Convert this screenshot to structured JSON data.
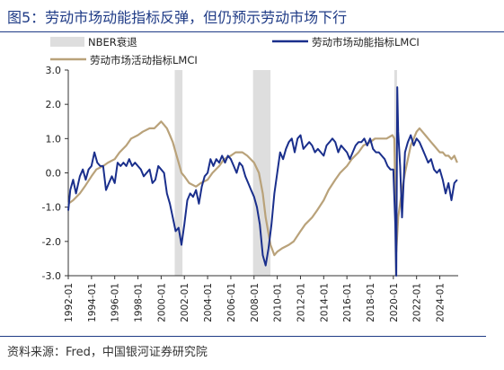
{
  "header": {
    "title": "图5：劳动市场动能指标反弹，但仍预示劳动市场下行"
  },
  "footer": {
    "source": "资料来源：Fred，中国银河证券研究院"
  },
  "chart_data": {
    "type": "line",
    "ylim": [
      -3.0,
      3.0
    ],
    "yticks": [
      "3.0",
      "2.0",
      "1.0",
      "0.0",
      "-1.0",
      "-2.0",
      "-3.0"
    ],
    "ytick_values": [
      3,
      2,
      1,
      0,
      -1,
      -2,
      -3
    ],
    "xlim": [
      "1992-01",
      "2025-08"
    ],
    "xticks": [
      "1992-01",
      "1994-01",
      "1996-01",
      "1998-01",
      "2000-01",
      "2002-01",
      "2004-01",
      "2006-01",
      "2008-01",
      "2010-01",
      "2012-01",
      "2014-01",
      "2016-01",
      "2018-01",
      "2020-01",
      "2022-01",
      "2024-01"
    ],
    "legend": {
      "recession": "NBER衰退",
      "momentum": "劳动市场动能指标LMCI",
      "activity": "劳动市场活动指标LMCI"
    },
    "colors": {
      "momentum": "#1a2f8c",
      "activity": "#b9a27a",
      "recession": "#dedede"
    },
    "recessions": [
      [
        "2001-03",
        "2001-11"
      ],
      [
        "2007-12",
        "2009-06"
      ],
      [
        "2020-02",
        "2020-04"
      ]
    ],
    "series": [
      {
        "name": "劳动市场动能指标LMCI",
        "points": [
          [
            "1992-01",
            -1.1
          ],
          [
            "1992-03",
            -0.5
          ],
          [
            "1992-06",
            -0.2
          ],
          [
            "1992-09",
            -0.6
          ],
          [
            "1993-01",
            -0.1
          ],
          [
            "1993-04",
            0.1
          ],
          [
            "1993-07",
            -0.2
          ],
          [
            "1993-10",
            0.1
          ],
          [
            "1994-01",
            0.2
          ],
          [
            "1994-04",
            0.6
          ],
          [
            "1994-07",
            0.3
          ],
          [
            "1994-10",
            0.2
          ],
          [
            "1995-01",
            0.2
          ],
          [
            "1995-04",
            -0.5
          ],
          [
            "1995-07",
            -0.3
          ],
          [
            "1995-10",
            -0.1
          ],
          [
            "1996-01",
            -0.3
          ],
          [
            "1996-04",
            0.3
          ],
          [
            "1996-07",
            0.2
          ],
          [
            "1996-10",
            0.3
          ],
          [
            "1997-01",
            0.2
          ],
          [
            "1997-04",
            0.4
          ],
          [
            "1997-07",
            0.2
          ],
          [
            "1997-10",
            0.3
          ],
          [
            "1998-01",
            0.2
          ],
          [
            "1998-04",
            0.1
          ],
          [
            "1998-07",
            -0.1
          ],
          [
            "1998-10",
            0.0
          ],
          [
            "1999-01",
            0.1
          ],
          [
            "1999-04",
            -0.3
          ],
          [
            "1999-07",
            -0.2
          ],
          [
            "1999-10",
            0.2
          ],
          [
            "2000-01",
            0.1
          ],
          [
            "2000-04",
            0.0
          ],
          [
            "2000-07",
            -0.6
          ],
          [
            "2000-10",
            -0.9
          ],
          [
            "2001-01",
            -1.3
          ],
          [
            "2001-04",
            -1.7
          ],
          [
            "2001-07",
            -1.6
          ],
          [
            "2001-10",
            -2.1
          ],
          [
            "2002-01",
            -1.5
          ],
          [
            "2002-04",
            -0.8
          ],
          [
            "2002-07",
            -0.6
          ],
          [
            "2002-10",
            -0.7
          ],
          [
            "2003-01",
            -0.5
          ],
          [
            "2003-04",
            -0.9
          ],
          [
            "2003-07",
            -0.4
          ],
          [
            "2003-10",
            -0.1
          ],
          [
            "2004-01",
            0.0
          ],
          [
            "2004-04",
            0.4
          ],
          [
            "2004-07",
            0.2
          ],
          [
            "2004-10",
            0.4
          ],
          [
            "2005-01",
            0.3
          ],
          [
            "2005-04",
            0.5
          ],
          [
            "2005-07",
            0.3
          ],
          [
            "2005-10",
            0.5
          ],
          [
            "2006-01",
            0.4
          ],
          [
            "2006-04",
            0.2
          ],
          [
            "2006-07",
            0.0
          ],
          [
            "2006-10",
            0.3
          ],
          [
            "2007-01",
            0.2
          ],
          [
            "2007-04",
            -0.1
          ],
          [
            "2007-07",
            -0.3
          ],
          [
            "2007-10",
            -0.5
          ],
          [
            "2008-01",
            -0.7
          ],
          [
            "2008-04",
            -1.0
          ],
          [
            "2008-07",
            -1.5
          ],
          [
            "2008-10",
            -2.4
          ],
          [
            "2009-01",
            -2.7
          ],
          [
            "2009-04",
            -2.2
          ],
          [
            "2009-07",
            -1.5
          ],
          [
            "2009-10",
            -0.6
          ],
          [
            "2010-01",
            0.0
          ],
          [
            "2010-04",
            0.6
          ],
          [
            "2010-07",
            0.4
          ],
          [
            "2010-10",
            0.7
          ],
          [
            "2011-01",
            0.9
          ],
          [
            "2011-04",
            1.0
          ],
          [
            "2011-07",
            0.6
          ],
          [
            "2011-10",
            1.0
          ],
          [
            "2012-01",
            1.1
          ],
          [
            "2012-04",
            0.7
          ],
          [
            "2012-07",
            0.8
          ],
          [
            "2012-10",
            0.9
          ],
          [
            "2013-01",
            0.8
          ],
          [
            "2013-04",
            0.6
          ],
          [
            "2013-07",
            0.7
          ],
          [
            "2013-10",
            0.6
          ],
          [
            "2014-01",
            0.5
          ],
          [
            "2014-04",
            0.8
          ],
          [
            "2014-07",
            0.9
          ],
          [
            "2014-10",
            1.0
          ],
          [
            "2015-01",
            0.9
          ],
          [
            "2015-04",
            0.6
          ],
          [
            "2015-07",
            0.8
          ],
          [
            "2015-10",
            0.7
          ],
          [
            "2016-01",
            0.6
          ],
          [
            "2016-04",
            0.4
          ],
          [
            "2016-07",
            0.6
          ],
          [
            "2016-10",
            0.8
          ],
          [
            "2017-01",
            0.9
          ],
          [
            "2017-04",
            0.9
          ],
          [
            "2017-07",
            1.0
          ],
          [
            "2017-10",
            0.8
          ],
          [
            "2018-01",
            1.0
          ],
          [
            "2018-04",
            0.7
          ],
          [
            "2018-07",
            0.6
          ],
          [
            "2018-10",
            0.6
          ],
          [
            "2019-01",
            0.5
          ],
          [
            "2019-04",
            0.4
          ],
          [
            "2019-07",
            0.2
          ],
          [
            "2019-10",
            0.1
          ],
          [
            "2020-01",
            0.1
          ],
          [
            "2020-03",
            -1.5
          ],
          [
            "2020-04",
            -3.0
          ],
          [
            "2020-05",
            2.5
          ],
          [
            "2020-06",
            1.2
          ],
          [
            "2020-08",
            0.2
          ],
          [
            "2020-10",
            -1.3
          ],
          [
            "2021-01",
            0.6
          ],
          [
            "2021-04",
            0.9
          ],
          [
            "2021-07",
            1.1
          ],
          [
            "2021-10",
            0.8
          ],
          [
            "2022-01",
            1.0
          ],
          [
            "2022-04",
            0.9
          ],
          [
            "2022-07",
            0.7
          ],
          [
            "2022-10",
            0.5
          ],
          [
            "2023-01",
            0.3
          ],
          [
            "2023-04",
            0.4
          ],
          [
            "2023-07",
            0.1
          ],
          [
            "2023-10",
            0.0
          ],
          [
            "2024-01",
            0.1
          ],
          [
            "2024-04",
            -0.2
          ],
          [
            "2024-07",
            -0.6
          ],
          [
            "2024-10",
            -0.3
          ],
          [
            "2025-01",
            -0.8
          ],
          [
            "2025-04",
            -0.3
          ],
          [
            "2025-07",
            -0.2
          ]
        ]
      },
      {
        "name": "劳动市场活动指标LMCI",
        "points": [
          [
            "1992-01",
            -0.9
          ],
          [
            "1992-06",
            -0.8
          ],
          [
            "1993-01",
            -0.6
          ],
          [
            "1993-06",
            -0.4
          ],
          [
            "1994-01",
            -0.1
          ],
          [
            "1994-06",
            0.1
          ],
          [
            "1995-01",
            0.2
          ],
          [
            "1995-06",
            0.3
          ],
          [
            "1996-01",
            0.4
          ],
          [
            "1996-06",
            0.6
          ],
          [
            "1997-01",
            0.8
          ],
          [
            "1997-06",
            1.0
          ],
          [
            "1998-01",
            1.1
          ],
          [
            "1998-06",
            1.2
          ],
          [
            "1999-01",
            1.3
          ],
          [
            "1999-06",
            1.3
          ],
          [
            "2000-01",
            1.5
          ],
          [
            "2000-04",
            1.4
          ],
          [
            "2000-07",
            1.3
          ],
          [
            "2000-10",
            1.1
          ],
          [
            "2001-01",
            0.9
          ],
          [
            "2001-04",
            0.6
          ],
          [
            "2001-07",
            0.3
          ],
          [
            "2001-10",
            0.0
          ],
          [
            "2002-01",
            -0.1
          ],
          [
            "2002-06",
            -0.3
          ],
          [
            "2003-01",
            -0.4
          ],
          [
            "2003-06",
            -0.3
          ],
          [
            "2004-01",
            -0.2
          ],
          [
            "2004-06",
            0.0
          ],
          [
            "2005-01",
            0.2
          ],
          [
            "2005-06",
            0.4
          ],
          [
            "2006-01",
            0.5
          ],
          [
            "2006-06",
            0.6
          ],
          [
            "2007-01",
            0.6
          ],
          [
            "2007-06",
            0.5
          ],
          [
            "2008-01",
            0.3
          ],
          [
            "2008-06",
            0.0
          ],
          [
            "2008-10",
            -0.6
          ],
          [
            "2009-01",
            -1.3
          ],
          [
            "2009-06",
            -2.1
          ],
          [
            "2009-10",
            -2.4
          ],
          [
            "2010-01",
            -2.3
          ],
          [
            "2010-06",
            -2.2
          ],
          [
            "2011-01",
            -2.1
          ],
          [
            "2011-06",
            -2.0
          ],
          [
            "2012-01",
            -1.7
          ],
          [
            "2012-06",
            -1.5
          ],
          [
            "2013-01",
            -1.3
          ],
          [
            "2013-06",
            -1.1
          ],
          [
            "2014-01",
            -0.8
          ],
          [
            "2014-06",
            -0.5
          ],
          [
            "2015-01",
            -0.2
          ],
          [
            "2015-06",
            0.0
          ],
          [
            "2016-01",
            0.2
          ],
          [
            "2016-06",
            0.4
          ],
          [
            "2017-01",
            0.6
          ],
          [
            "2017-06",
            0.8
          ],
          [
            "2018-01",
            0.9
          ],
          [
            "2018-06",
            1.0
          ],
          [
            "2019-01",
            1.0
          ],
          [
            "2019-06",
            1.0
          ],
          [
            "2019-12",
            1.1
          ],
          [
            "2020-02",
            1.0
          ],
          [
            "2020-04",
            -2.3
          ],
          [
            "2020-06",
            -1.3
          ],
          [
            "2020-10",
            -0.5
          ],
          [
            "2021-01",
            0.0
          ],
          [
            "2021-04",
            0.4
          ],
          [
            "2021-07",
            0.8
          ],
          [
            "2021-10",
            1.0
          ],
          [
            "2022-01",
            1.2
          ],
          [
            "2022-04",
            1.3
          ],
          [
            "2022-07",
            1.2
          ],
          [
            "2022-10",
            1.1
          ],
          [
            "2023-01",
            1.0
          ],
          [
            "2023-04",
            0.9
          ],
          [
            "2023-07",
            0.8
          ],
          [
            "2023-10",
            0.7
          ],
          [
            "2024-01",
            0.6
          ],
          [
            "2024-04",
            0.6
          ],
          [
            "2024-07",
            0.5
          ],
          [
            "2024-10",
            0.5
          ],
          [
            "2025-01",
            0.4
          ],
          [
            "2025-04",
            0.5
          ],
          [
            "2025-07",
            0.3
          ]
        ]
      }
    ]
  }
}
